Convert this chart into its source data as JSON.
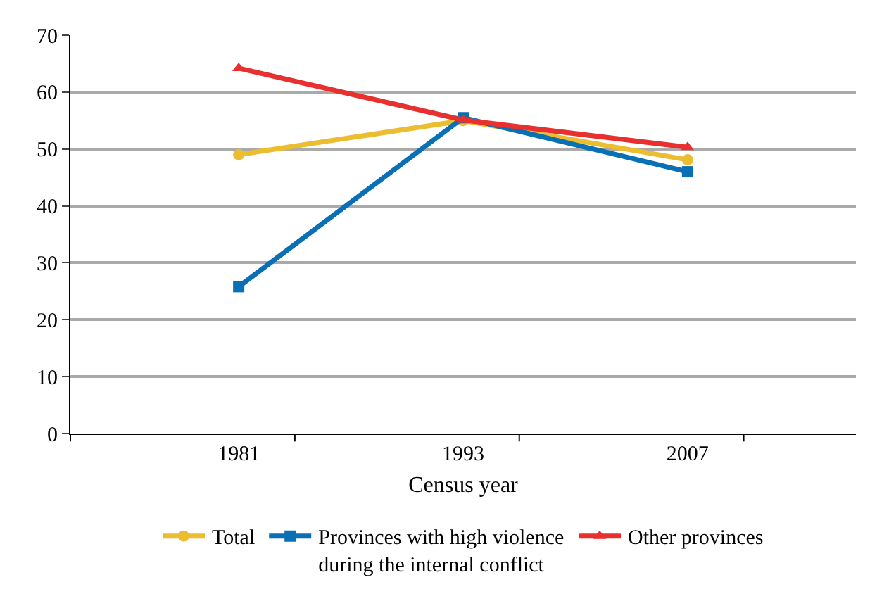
{
  "chart_data": {
    "type": "line",
    "xlabel": "Census year",
    "categories": [
      "1981",
      "1993",
      "2007"
    ],
    "series": [
      {
        "name": "Total",
        "color": "#ebbd2f",
        "marker": "circle",
        "values": [
          49.0,
          55.0,
          48.1
        ]
      },
      {
        "name": "Provinces with high violence during the internal conflict",
        "color": "#0a70b5",
        "marker": "square",
        "values": [
          25.8,
          55.5,
          46.0
        ]
      },
      {
        "name": "Other provinces",
        "color": "#e8312f",
        "marker": "triangle",
        "values": [
          64.2,
          55.1,
          50.3
        ]
      }
    ],
    "ylim": [
      0,
      70
    ],
    "yticks": [
      0,
      10,
      20,
      30,
      40,
      50,
      60,
      70
    ],
    "grid": "y",
    "legend": "bottom",
    "line_style": "solid"
  }
}
